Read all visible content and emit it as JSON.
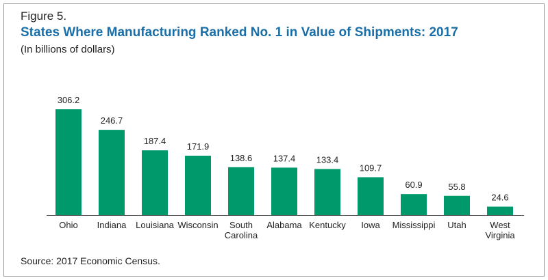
{
  "figure_label": "Figure 5.",
  "source_note": "Source: 2017 Economic Census.",
  "chart_data": {
    "type": "bar",
    "title": "States Where Manufacturing Ranked No. 1 in Value of Shipments: 2017",
    "subtitle": "(In billions of dollars)",
    "categories": [
      [
        "Ohio"
      ],
      [
        "Indiana"
      ],
      [
        "Louisiana"
      ],
      [
        "Wisconsin"
      ],
      [
        "South",
        "Carolina"
      ],
      [
        "Alabama"
      ],
      [
        "Kentucky"
      ],
      [
        "Iowa"
      ],
      [
        "Mississippi"
      ],
      [
        "Utah"
      ],
      [
        "West",
        "Virginia"
      ]
    ],
    "values": [
      306.2,
      246.7,
      187.4,
      171.9,
      138.6,
      137.4,
      133.4,
      109.7,
      60.9,
      55.8,
      24.6
    ],
    "value_labels": [
      "306.2",
      "246.7",
      "187.4",
      "171.9",
      "138.6",
      "137.4",
      "133.4",
      "109.7",
      "60.9",
      "55.8",
      "24.6"
    ],
    "ylim": [
      0,
      306.2
    ],
    "xlabel": "",
    "ylabel": "",
    "grid": false,
    "bar_color": "#00996b",
    "axis_color": "#555555"
  }
}
